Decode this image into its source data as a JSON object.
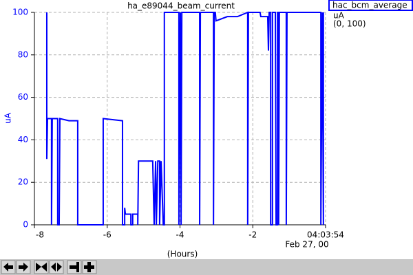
{
  "chart_data": {
    "type": "line",
    "title": "ha_e89044_beam_current",
    "xlabel": "(Hours)",
    "ylabel": "uA",
    "date": "Feb 27, 00",
    "legend_units": "uA",
    "legend_range": "(0, 100)",
    "x": [
      -7.66,
      -7.66,
      -7.64,
      -7.53,
      -7.53,
      -7.51,
      -7.36,
      -7.36,
      -7.32,
      -7.3,
      -7.05,
      -6.81,
      -6.81,
      -6.11,
      -6.11,
      -5.58,
      -5.58,
      -5.52,
      -5.52,
      -5.5,
      -5.35,
      -5.35,
      -5.3,
      -5.3,
      -5.16,
      -5.16,
      -5.14,
      -4.75,
      -4.71,
      -4.67,
      -4.65,
      -4.61,
      -4.56,
      -4.56,
      -4.52,
      -4.46,
      -4.43,
      -4.43,
      -4.03,
      -4.03,
      -3.99,
      -3.97,
      -3.95,
      -3.46,
      -3.46,
      -3.44,
      -3.08,
      -3.08,
      -3.06,
      -3.03,
      -3.01,
      -2.7,
      -2.42,
      -2.14,
      -2.14,
      -2.12,
      -1.8,
      -1.78,
      -1.59,
      -1.57,
      -1.55,
      -1.51,
      -1.51,
      -1.46,
      -1.46,
      -1.38,
      -1.36,
      -1.32,
      -1.32,
      -1.29,
      -1.29,
      -1.27,
      -1.08,
      -1.08,
      -1.06,
      -0.13,
      -0.13,
      -0.09,
      -0.06,
      -0.06
    ],
    "series": [
      {
        "name": "hac_bcm_average",
        "color": "#0000ff",
        "values": [
          100,
          31,
          50,
          50,
          0,
          50,
          50,
          0,
          0,
          50,
          49,
          49,
          0,
          0,
          50,
          49,
          0,
          0,
          8,
          5,
          5,
          0,
          0,
          5,
          5,
          0,
          30,
          30,
          0,
          30,
          0,
          30,
          30,
          0,
          30,
          0,
          0,
          100,
          100,
          0,
          100,
          0,
          100,
          100,
          0,
          100,
          100,
          0,
          100,
          100,
          96,
          98,
          98,
          100,
          0,
          100,
          100,
          98,
          98,
          82,
          100,
          100,
          0,
          0,
          100,
          100,
          0,
          0,
          100,
          100,
          0,
          100,
          100,
          0,
          100,
          100,
          0,
          100,
          0,
          100
        ]
      }
    ],
    "xlim": [
      -8,
      0
    ],
    "ylim": [
      0,
      100
    ],
    "xticks": [
      -8,
      -6,
      -4,
      -2,
      {
        "value": 0,
        "label": "04:03:54"
      }
    ],
    "yticks": [
      0,
      20,
      40,
      60,
      80,
      100
    ],
    "grid": true
  }
}
